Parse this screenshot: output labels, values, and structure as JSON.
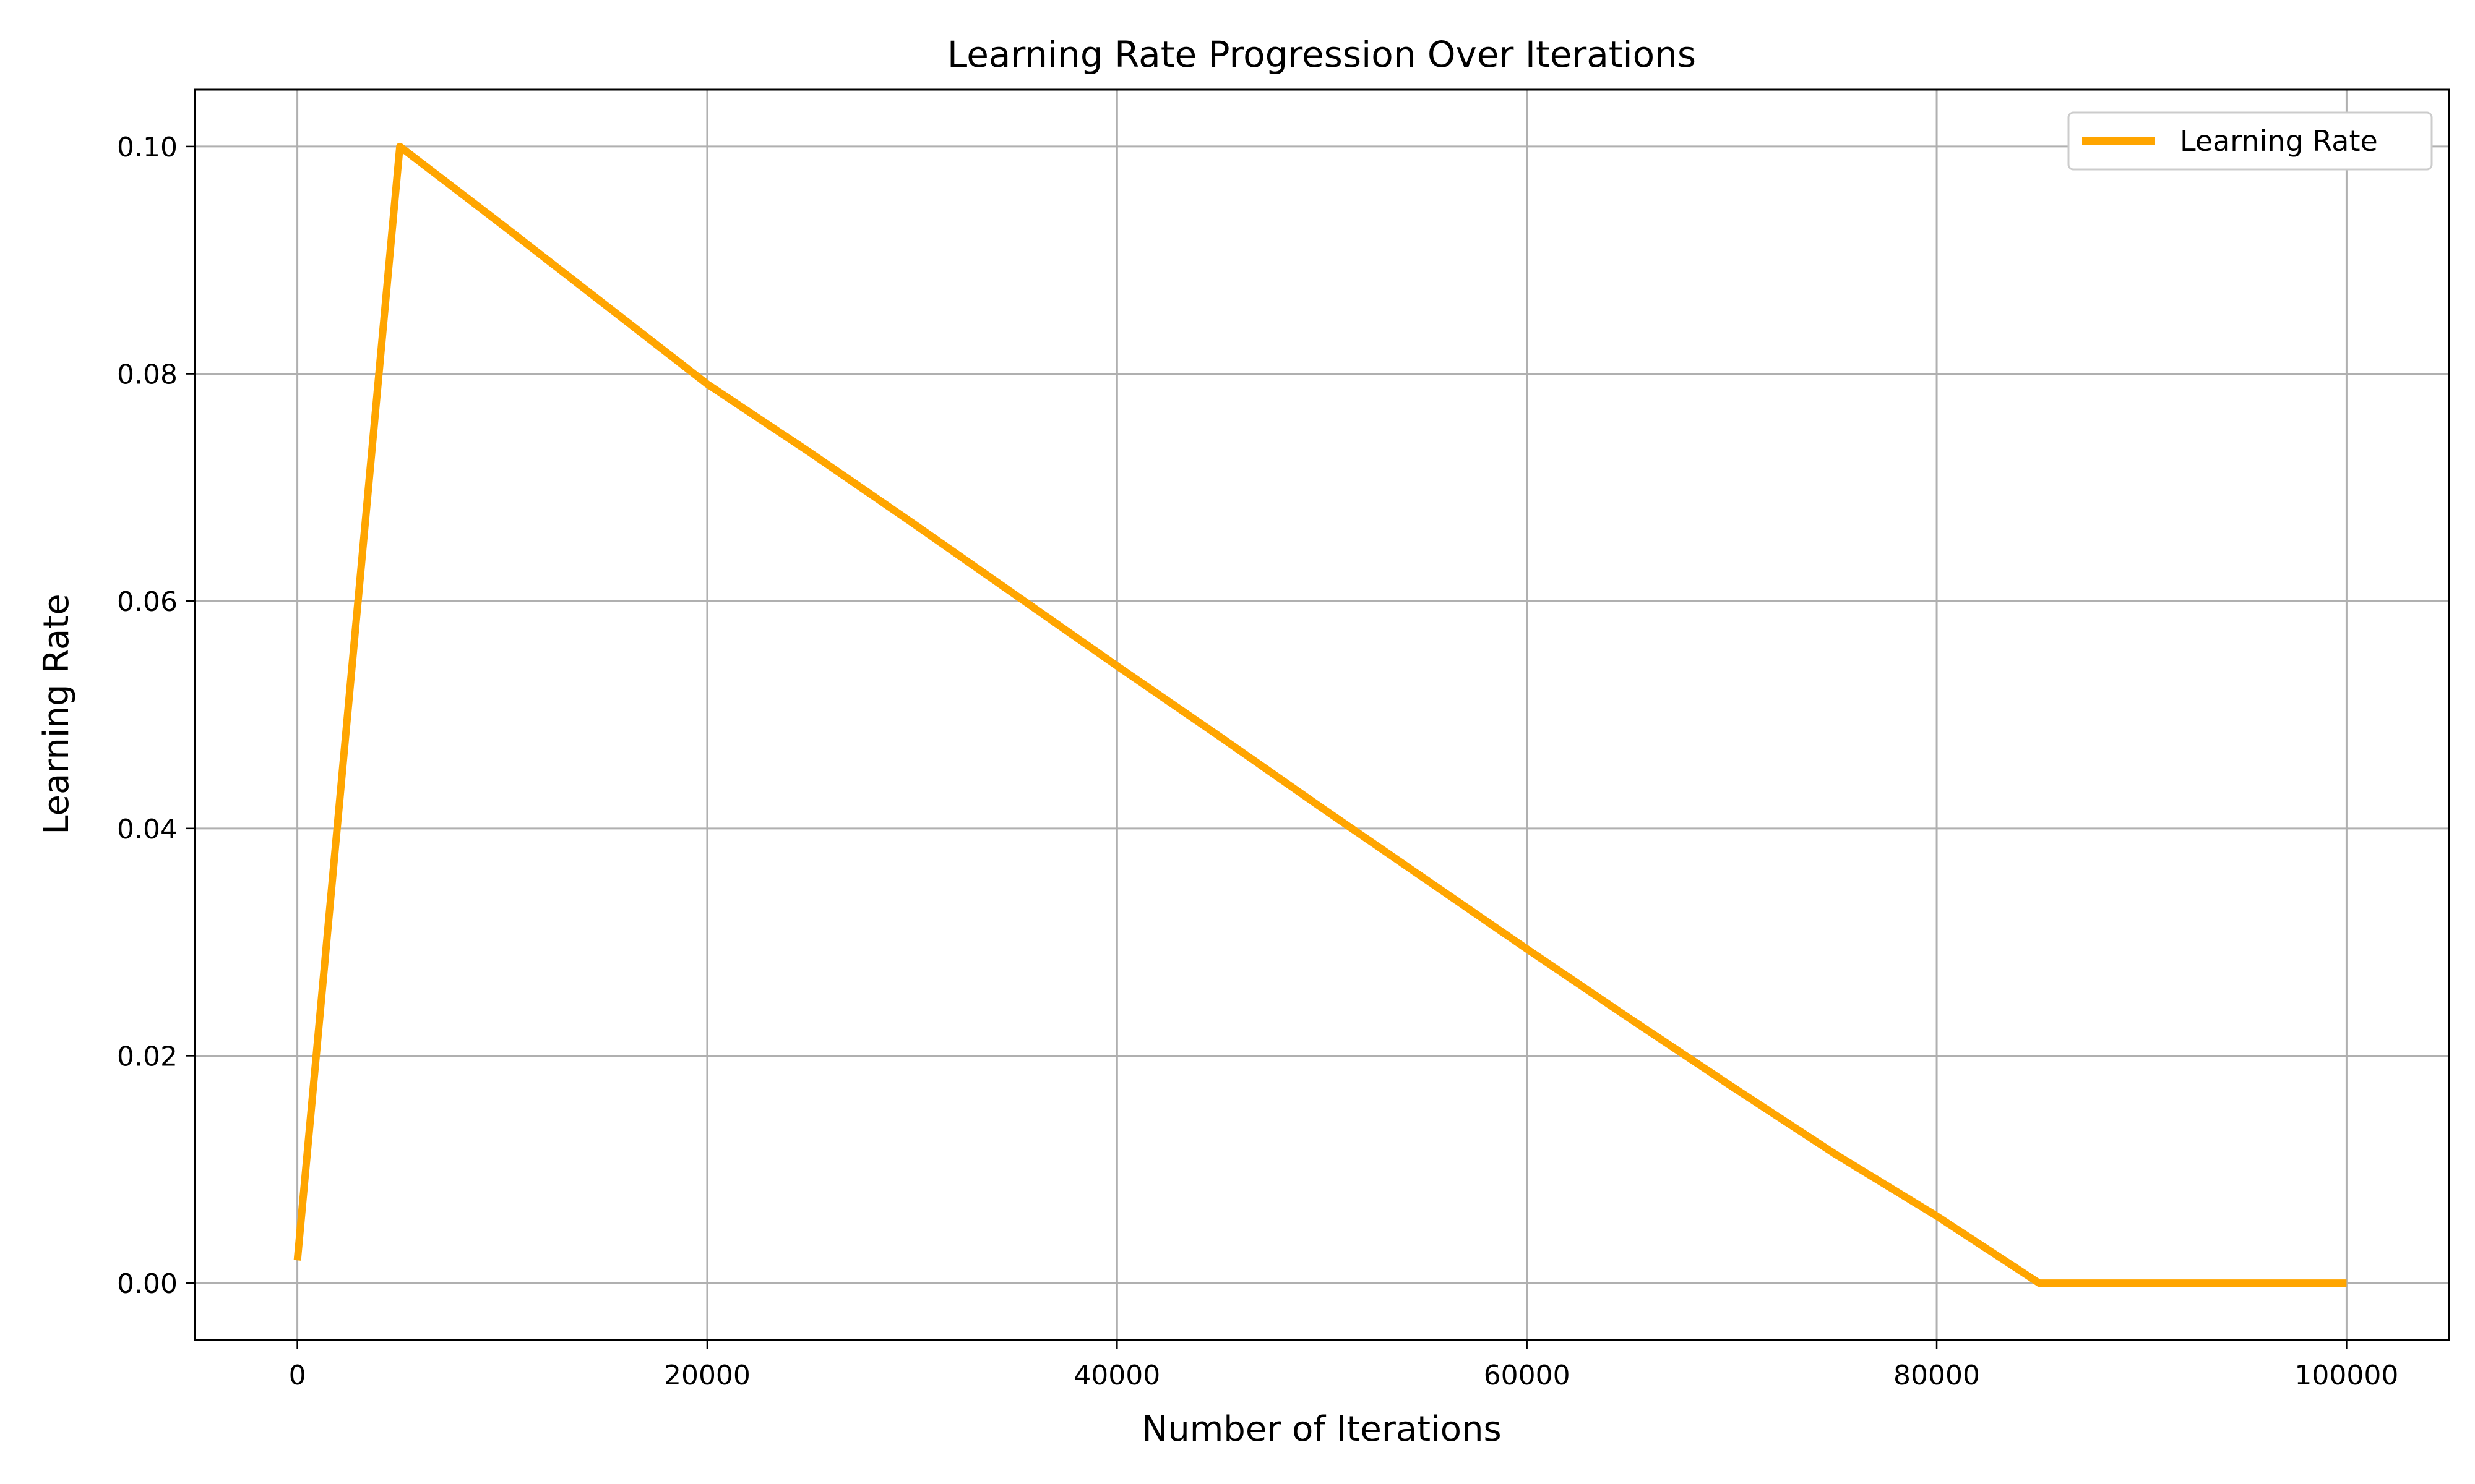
{
  "chart_data": {
    "type": "line",
    "title": "Learning Rate Progression Over Iterations",
    "xlabel": "Number of Iterations",
    "ylabel": "Learning Rate",
    "xlim": [
      -5000,
      105000
    ],
    "ylim": [
      -0.005,
      0.105
    ],
    "x_ticks": [
      0,
      20000,
      40000,
      60000,
      80000,
      100000
    ],
    "x_tick_labels": [
      "0",
      "20000",
      "40000",
      "60000",
      "80000",
      "100000"
    ],
    "y_ticks": [
      0.0,
      0.02,
      0.04,
      0.06,
      0.08,
      0.1
    ],
    "y_tick_labels": [
      "0.00",
      "0.02",
      "0.04",
      "0.06",
      "0.08",
      "0.10"
    ],
    "grid": true,
    "legend": "top-right",
    "series": [
      {
        "name": "Learning Rate",
        "color": "#FFA500",
        "x": [
          0,
          5000,
          10000,
          15000,
          20000,
          25000,
          30000,
          35000,
          40000,
          45000,
          50000,
          55000,
          60000,
          65000,
          70000,
          75000,
          80000,
          85000,
          90000,
          95000,
          100000
        ],
        "y": [
          0.002,
          0.1,
          0.0931,
          0.0861,
          0.0791,
          0.0731,
          0.0669,
          0.0606,
          0.0543,
          0.0481,
          0.0418,
          0.0356,
          0.0294,
          0.0233,
          0.0173,
          0.0114,
          0.0059,
          0.0,
          0.0,
          0.0,
          0.0
        ]
      }
    ]
  }
}
